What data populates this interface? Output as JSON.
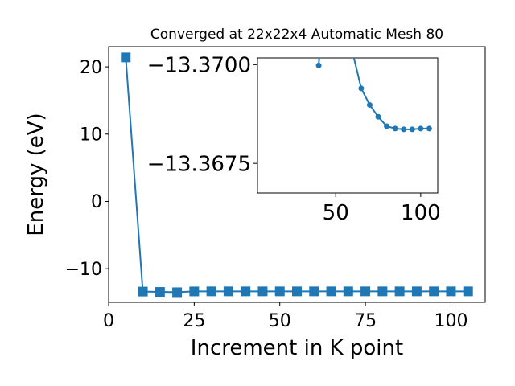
{
  "chart_data": [
    {
      "type": "line",
      "title": "Converged at 22x22x4 Automatic Mesh 80",
      "xlabel": "Increment in K point",
      "ylabel": "Energy (eV)",
      "xlim": [
        0,
        110
      ],
      "ylim": [
        -15,
        23
      ],
      "xticks": [
        0,
        25,
        50,
        75,
        100
      ],
      "yticks": [
        -10,
        0,
        10,
        20
      ],
      "xtick_labels": [
        "0",
        "25",
        "50",
        "75",
        "100"
      ],
      "ytick_labels": [
        "−10",
        "0",
        "10",
        "20"
      ],
      "marker": "square",
      "grid": false,
      "series": [
        {
          "x": [
            5,
            10,
            15,
            20,
            25,
            30,
            35,
            40,
            45,
            50,
            55,
            60,
            65,
            70,
            75,
            80,
            85,
            90,
            95,
            100,
            105
          ],
          "y": [
            21.4,
            -13.4,
            -13.45,
            -13.5,
            -13.38,
            -13.37,
            -13.37,
            -13.37,
            -13.37,
            -13.37,
            -13.37,
            -13.37,
            -13.37,
            -13.37,
            -13.37,
            -13.37,
            -13.37,
            -13.37,
            -13.37,
            -13.37,
            -13.37
          ]
        }
      ],
      "color": "#1f77b4"
    },
    {
      "type": "line",
      "title": "",
      "xlabel": "",
      "ylabel": "",
      "xlim": [
        4,
        110
      ],
      "ylim": [
        -13.36675,
        -13.37017
      ],
      "xticks": [
        50,
        100
      ],
      "yticks": [
        -13.37,
        -13.3675
      ],
      "xtick_labels": [
        "50",
        "100"
      ],
      "ytick_labels": [
        "−13.3700",
        "−13.3675"
      ],
      "marker": "circle",
      "grid": false,
      "series": [
        {
          "x": [
            40,
            40.5,
            60,
            65,
            70,
            75,
            80,
            85,
            90,
            95,
            100,
            105
          ],
          "y": [
            -13.36998,
            -13.3703,
            -13.3703,
            -13.3694,
            -13.36898,
            -13.36868,
            -13.36844,
            -13.36838,
            -13.36836,
            -13.36836,
            -13.36838,
            -13.36838
          ]
        }
      ],
      "color": "#1f77b4"
    }
  ]
}
